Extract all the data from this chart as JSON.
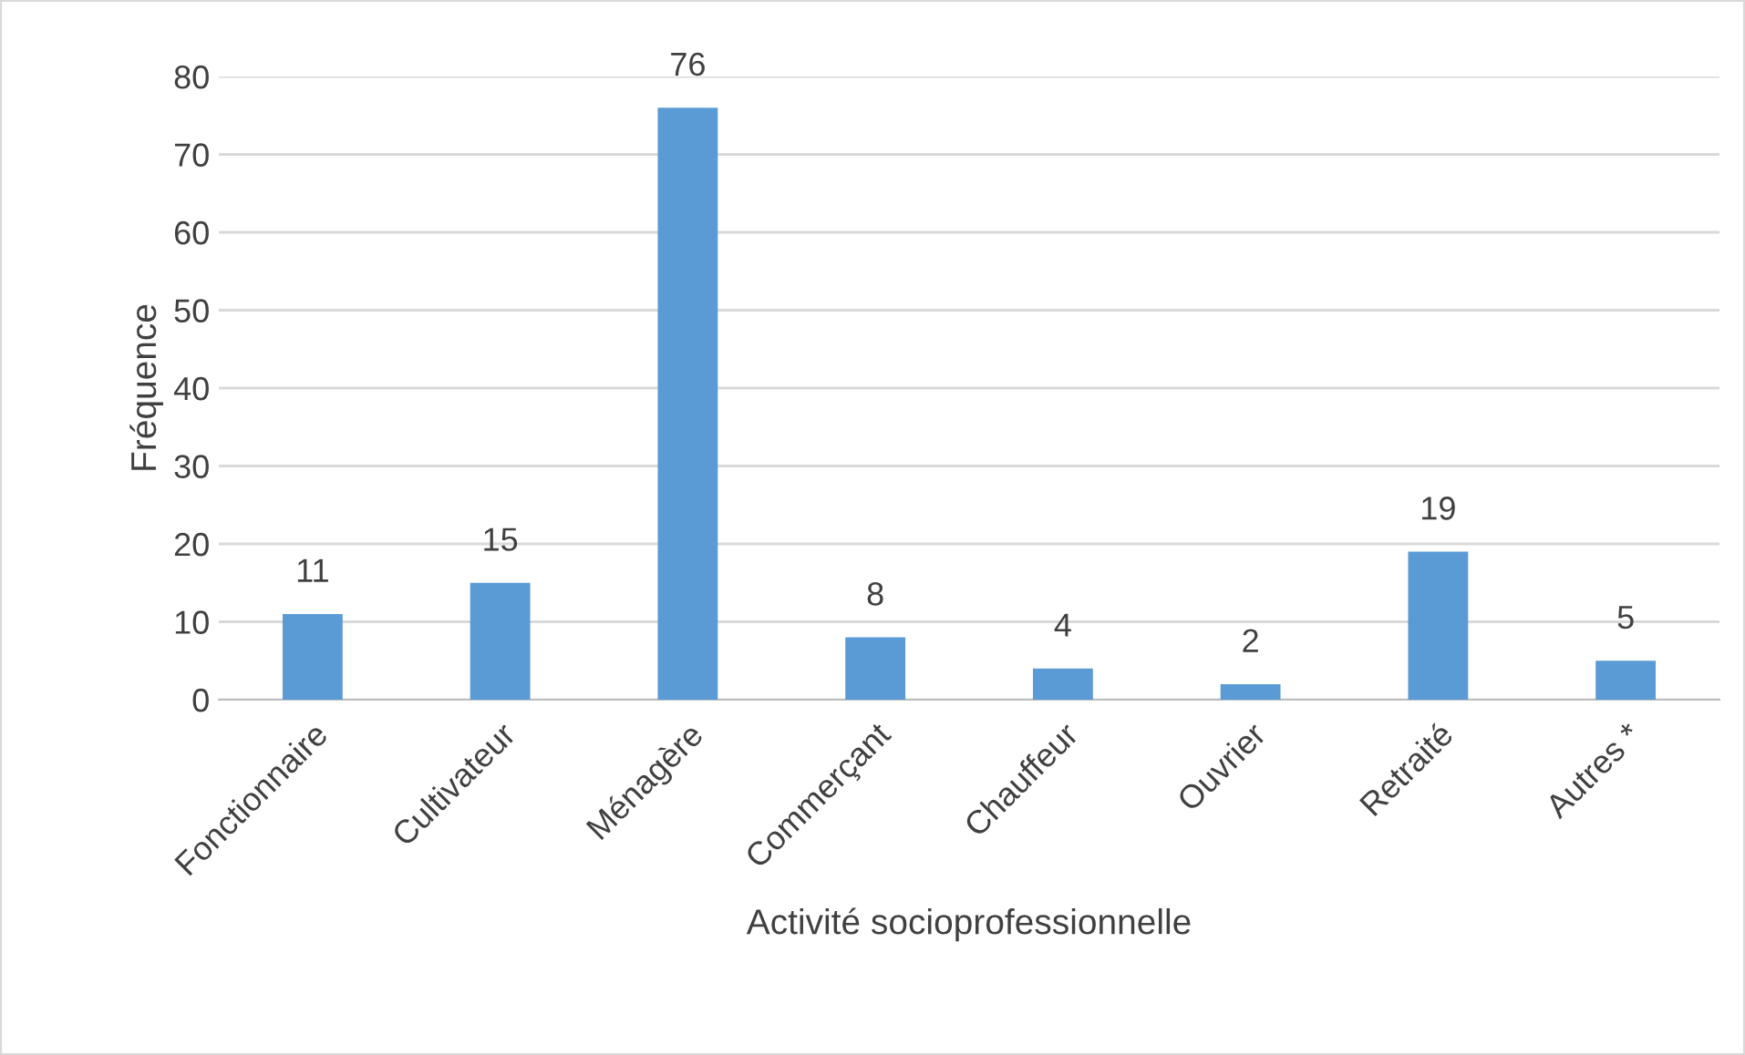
{
  "chart_data": {
    "type": "bar",
    "xlabel": "Activité socioprofessionnelle",
    "ylabel": "Fréquence",
    "categories": [
      "Fonctionnaire",
      "Cultivateur",
      "Ménagère",
      "Commerçant",
      "Chauffeur",
      "Ouvrier",
      "Retraité",
      "Autres *"
    ],
    "values": [
      11,
      15,
      76,
      8,
      4,
      2,
      19,
      5
    ],
    "color": "#5b9bd5",
    "ylim": [
      0,
      80
    ],
    "yticks": [
      0,
      10,
      20,
      30,
      40,
      50,
      60,
      70,
      80
    ],
    "grid": "y",
    "data_labels": true,
    "legend": false
  }
}
